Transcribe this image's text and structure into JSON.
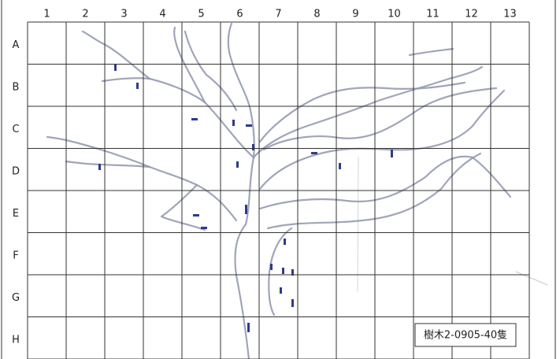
{
  "columns": [
    "1",
    "2",
    "3",
    "4",
    "5",
    "6",
    "7",
    "8",
    "9",
    "10",
    "11",
    "12",
    "13"
  ],
  "rows": [
    "A",
    "B",
    "C",
    "D",
    "E",
    "F",
    "G",
    "H"
  ],
  "label": "樹木2-0905-40隻"
}
